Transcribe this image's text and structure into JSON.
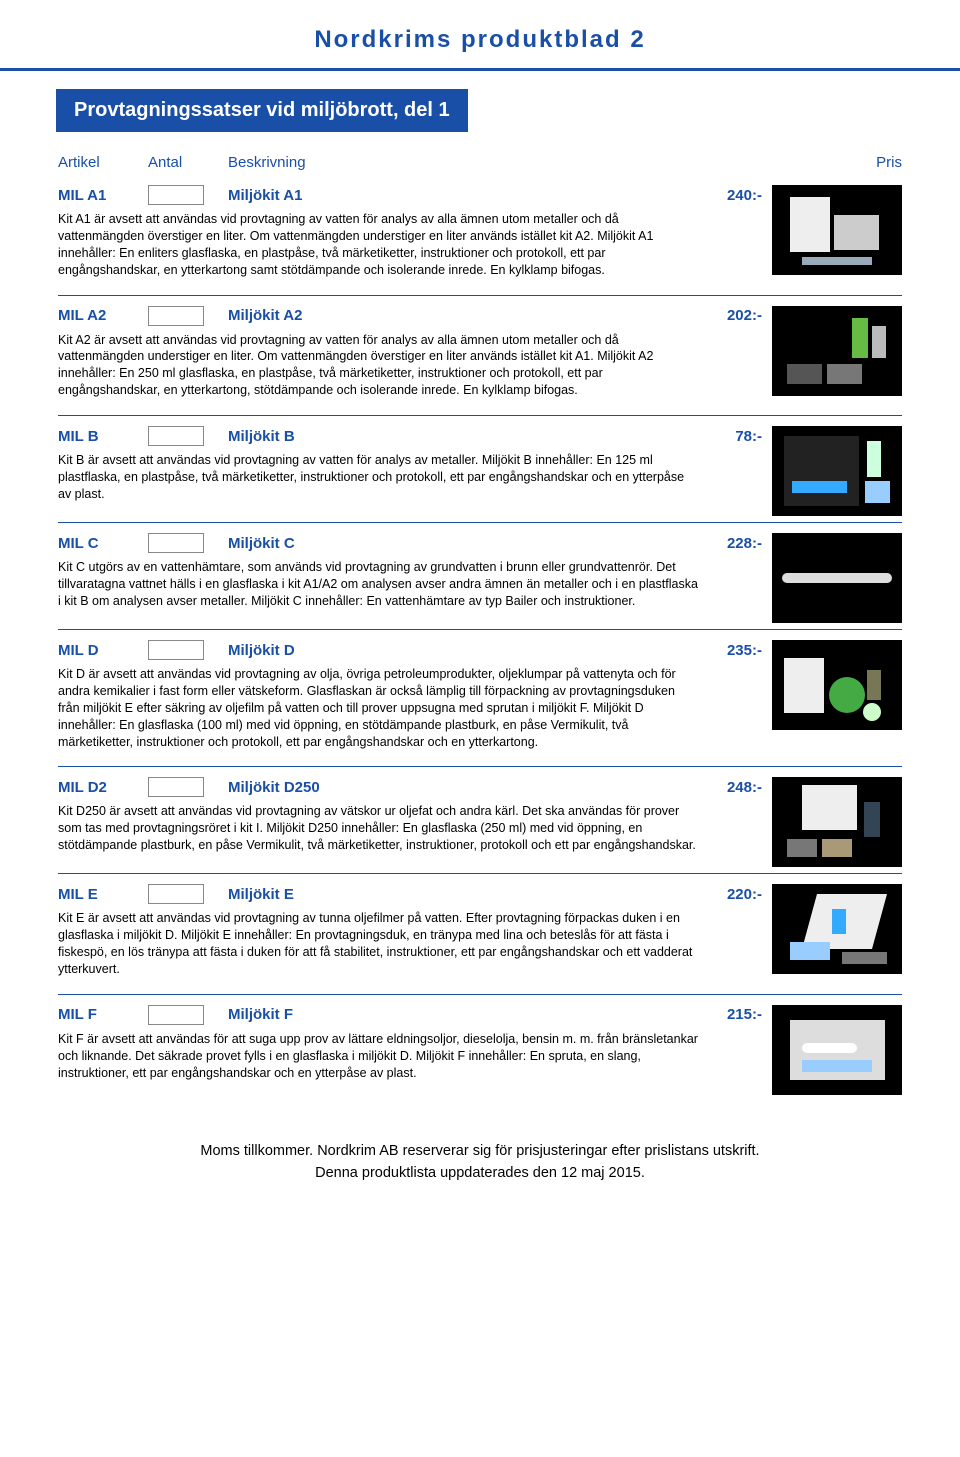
{
  "header": {
    "title": "Nordkrims produktblad 2",
    "subtitle": "Provtagningssatser vid miljöbrott, del 1"
  },
  "columns": {
    "artikel": "Artikel",
    "antal": "Antal",
    "beskrivning": "Beskrivning",
    "pris": "Pris"
  },
  "products": [
    {
      "art": "MIL A1",
      "name": "Miljökit A1",
      "price": "240:-",
      "desc": "Kit A1 är avsett att användas vid provtagning av vatten för analys av alla ämnen utom metaller och då vattenmängden överstiger en liter. Om vattenmängden understiger en liter används istället kit A2. Miljökit A1 innehåller: En enliters glasflaska, en plastpåse, två märketiketter, instruktioner och protokoll, ett par engångshandskar, en ytterkartong samt stötdämpande och isolerande inrede. En kylklamp bifogas.",
      "img": "a1"
    },
    {
      "art": "MIL A2",
      "name": "Miljökit A2",
      "price": "202:-",
      "desc": "Kit A2 är avsett att användas vid provtagning av vatten för analys av alla ämnen utom metaller och då vattenmängden understiger en liter. Om vattenmängden överstiger en liter används istället kit A1. Miljökit A2 innehåller: En 250 ml glasflaska, en plastpåse, två märketiketter, instruktioner och protokoll, ett par engångshandskar, en ytterkartong, stötdämpande och isolerande inrede. En kylklamp bifogas.",
      "img": "a2"
    },
    {
      "art": "MIL B",
      "name": "Miljökit B",
      "price": "78:-",
      "desc": "Kit B är avsett att användas vid provtagning av vatten för analys av metaller. Miljökit B innehåller: En 125 ml plastflaska, en plastpåse, två märketiketter, instruktioner och protokoll, ett par engångshandskar och en ytterpåse av plast.",
      "img": "b"
    },
    {
      "art": "MIL C",
      "name": "Miljökit C",
      "price": "228:-",
      "desc": "Kit C utgörs av en vattenhämtare, som används vid provtagning av grundvatten i brunn eller grundvattenrör. Det tillvaratagna vattnet hälls i en glasflaska i kit A1/A2 om analysen avser andra ämnen än metaller och i en plastflaska i kit B om analysen avser metaller. Miljökit C innehåller: En vattenhämtare av typ Bailer och instruktioner.",
      "img": "c"
    },
    {
      "art": "MIL D",
      "name": "Miljökit D",
      "price": "235:-",
      "desc": "Kit D är avsett att användas vid provtagning av olja, övriga petroleumprodukter, oljeklumpar på vattenyta och för andra kemikalier i fast form eller vätskeform. Glasflaskan är också lämplig till förpackning av provtagningsduken från miljökit E efter säkring av oljefilm på vatten och till prover uppsugna med sprutan i miljökit F. Miljökit D innehåller: En glasflaska (100 ml) med vid öppning, en stötdämpande plastburk, en påse Vermikulit, två märketiketter, instruktioner och protokoll, ett par engångshandskar och en ytterkartong.",
      "img": "d"
    },
    {
      "art": "MIL D2",
      "name": "Miljökit D250",
      "price": "248:-",
      "desc": "Kit D250 är avsett att användas vid provtagning av vätskor ur oljefat och andra kärl. Det ska användas för prover som tas med provtagningsröret i kit I. Miljökit D250 innehåller: En glasflaska (250 ml) med vid öppning, en stötdämpande plastburk, en påse Vermikulit, två märketiketter, instruktioner, protokoll och ett par engångshandskar.",
      "img": "d2"
    },
    {
      "art": "MIL E",
      "name": "Miljökit E",
      "price": "220:-",
      "desc": "Kit E är avsett att användas vid provtagning av tunna oljefilmer på vatten. Efter provtagning förpackas duken i en glasflaska i miljökit D. Miljökit E innehåller: En provtagningsduk, en tränypa med lina och beteslås för att fästa i fiskespö, en lös tränypa att fästa i duken för att få stabilitet, instruktioner, ett par engångshandskar och ett vadderat ytterkuvert.",
      "img": "e"
    },
    {
      "art": "MIL F",
      "name": "Miljökit F",
      "price": "215:-",
      "desc": "Kit F är avsett att användas för att suga upp prov av lättare eldningsoljor, dieselolja, bensin m. m. från bränsletankar och liknande. Det säkrade provet fylls i en glasflaska i miljökit D. Miljökit F innehåller: En spruta, en slang, instruktioner, ett par engångshandskar och en ytterpåse av plast.",
      "img": "f"
    }
  ],
  "footer": {
    "line1": "Moms tillkommer. Nordkrim AB reserverar sig för prisjusteringar efter prislistans utskrift.",
    "line2": "Denna produktlista uppdaterades den 12 maj 2015."
  },
  "colors": {
    "brand": "#1a4fa8",
    "text": "#000000",
    "bg": "#ffffff"
  }
}
